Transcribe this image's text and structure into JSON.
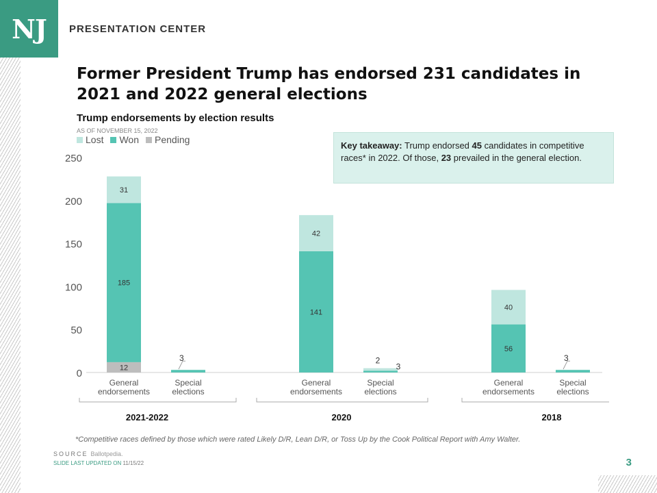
{
  "brand": {
    "logo_text": "NJ",
    "name": "PRESENTATION CENTER"
  },
  "headline": "Former President Trump has endorsed 231 candidates in 2021 and 2022 general elections",
  "subtitle": "Trump endorsements by election results",
  "as_of": "AS OF NOVEMBER  15, 2022",
  "takeaway": {
    "label": "Key takeaway:",
    "text1": " Trump endorsed ",
    "num1": "45",
    "text2": " candidates in competitive races* in 2022. Of those, ",
    "num2": "23",
    "text3": " prevailed in the general election."
  },
  "colors": {
    "lost": "#bfe6df",
    "won": "#55c4b3",
    "pending": "#bdbdbd",
    "brand": "#3a9b82"
  },
  "chart_data": {
    "type": "bar",
    "stacked": true,
    "ylim": [
      0,
      250
    ],
    "yticks": [
      0,
      50,
      100,
      150,
      200,
      250
    ],
    "legend": [
      "Lost",
      "Won",
      "Pending"
    ],
    "legend_position": "top-left",
    "groups": [
      "2021-2022",
      "2020",
      "2018"
    ],
    "categories": [
      {
        "group": "2021-2022",
        "label": [
          "General",
          "endorsements"
        ],
        "pending": 12,
        "won": 185,
        "lost": 31
      },
      {
        "group": "2021-2022",
        "label": [
          "Special",
          "elections"
        ],
        "pending": 0,
        "won": 3,
        "lost": 0
      },
      {
        "group": "2020",
        "label": [
          "General",
          "endorsements"
        ],
        "pending": 0,
        "won": 141,
        "lost": 42
      },
      {
        "group": "2020",
        "label": [
          "Special",
          "elections"
        ],
        "pending": 0,
        "won": 2,
        "lost": 3
      },
      {
        "group": "2018",
        "label": [
          "General",
          "endorsements"
        ],
        "pending": 0,
        "won": 56,
        "lost": 40
      },
      {
        "group": "2018",
        "label": [
          "Special",
          "elections"
        ],
        "pending": 0,
        "won": 3,
        "lost": 0
      }
    ]
  },
  "footnote": "*Competitive races defined by those which were rated Likely D/R, Lean D/R, or Toss Up by the Cook Political Report with Amy Walter.",
  "source": {
    "label": "SOURCE",
    "value": "Ballotpedia."
  },
  "updated": {
    "label": "SLIDE LAST UPDATED ON",
    "value": "11/15/22"
  },
  "page_number": "3"
}
